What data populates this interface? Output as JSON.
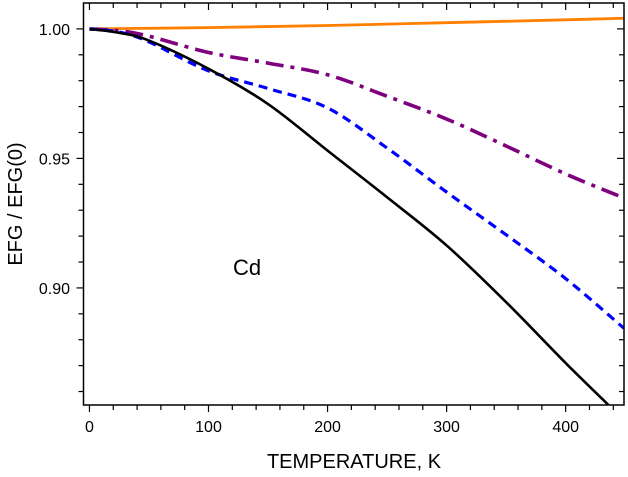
{
  "chart_data": {
    "type": "line",
    "title": "",
    "xlabel": "TEMPERATURE, K",
    "ylabel": "EFG / EFG(0)",
    "xlim": [
      -5,
      449
    ],
    "ylim": [
      0.8548,
      1.01
    ],
    "xticks": [
      0,
      100,
      200,
      300,
      400
    ],
    "xtick_labels": [
      "0",
      "100",
      "200",
      "300",
      "400"
    ],
    "yticks": [
      0.9,
      0.95,
      1.0
    ],
    "ytick_labels": [
      "0.90",
      "0.95",
      "1.00"
    ],
    "x_minor_step": 20,
    "y_minor_step": 0.01,
    "grid": false,
    "annotation": "Cd",
    "series": [
      {
        "color": "#ff7f00",
        "style": "solid",
        "x": [
          0,
          100,
          200,
          300,
          400,
          449
        ],
        "y": [
          1.0,
          1.0005,
          1.0013,
          1.0024,
          1.0035,
          1.0041
        ]
      },
      {
        "color": "#7f007f",
        "style": "dashdot",
        "x": [
          0,
          25,
          50,
          100,
          150,
          200,
          250,
          300,
          350,
          400,
          449
        ],
        "y": [
          1.0,
          0.9993,
          0.9972,
          0.9909,
          0.9868,
          0.9823,
          0.974,
          0.9652,
          0.9548,
          0.944,
          0.9347
        ]
      },
      {
        "color": "#0000ff",
        "style": "dashed",
        "x": [
          0,
          25,
          50,
          100,
          150,
          200,
          250,
          300,
          350,
          400,
          449
        ],
        "y": [
          1.0,
          0.9988,
          0.995,
          0.9838,
          0.977,
          0.9695,
          0.954,
          0.937,
          0.9205,
          0.9036,
          0.8844
        ]
      },
      {
        "color": "#000000",
        "style": "solid",
        "x": [
          0,
          25,
          50,
          100,
          150,
          200,
          250,
          300,
          350,
          400,
          436
        ],
        "y": [
          1.0,
          0.9985,
          0.9955,
          0.9846,
          0.971,
          0.953,
          0.935,
          0.9164,
          0.8945,
          0.871,
          0.8548
        ]
      }
    ]
  }
}
